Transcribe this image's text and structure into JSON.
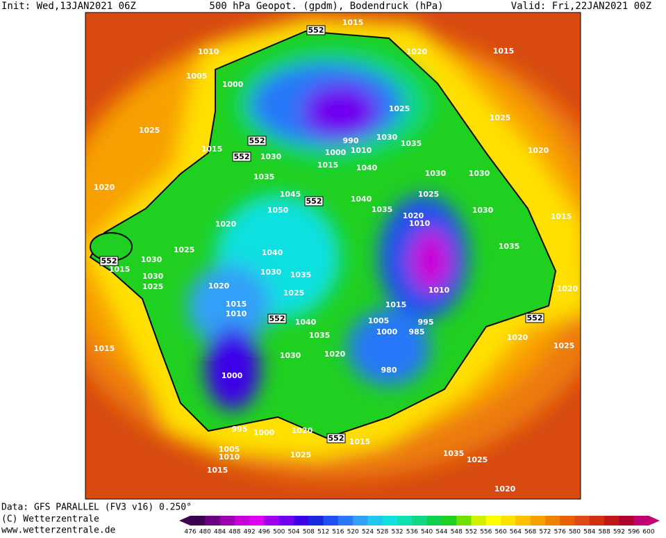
{
  "header": {
    "init": "Init: Wed,13JAN2021 06Z",
    "title": "500 hPa Geopot. (gpdm), Bodendruck (hPa)",
    "valid": "Valid: Fri,22JAN2021 00Z"
  },
  "footer": {
    "data": "Data: GFS PARALLEL (FV3 v16) 0.250°",
    "copyright": "(C) Wetterzentrale",
    "url": "www.wetterzentrale.de"
  },
  "colorbar": {
    "ticks": [
      476,
      480,
      484,
      488,
      492,
      496,
      500,
      504,
      508,
      512,
      516,
      520,
      524,
      528,
      532,
      536,
      540,
      544,
      548,
      552,
      556,
      560,
      564,
      568,
      572,
      576,
      580,
      584,
      588,
      592,
      596,
      600
    ],
    "colors": [
      "#3c0050",
      "#6a0080",
      "#9a00b0",
      "#c800d8",
      "#e000f0",
      "#a000f0",
      "#7000f0",
      "#3c00e8",
      "#1828e0",
      "#2050f0",
      "#2878f8",
      "#30a0f8",
      "#20c8f0",
      "#10e0e0",
      "#10e0b0",
      "#10d880",
      "#10d050",
      "#20d020",
      "#70e000",
      "#d0f000",
      "#ffff00",
      "#ffe000",
      "#ffc000",
      "#f8a000",
      "#f08000",
      "#e86000",
      "#e04818",
      "#d03010",
      "#c01818",
      "#b00030",
      "#c00070"
    ]
  },
  "map": {
    "labels": [
      "1015",
      "552",
      "1010",
      "1020",
      "1015",
      "1005",
      "1000",
      "1025",
      "1025",
      "1025",
      "990",
      "1030",
      "1035",
      "552",
      "552",
      "1015",
      "1030",
      "1000",
      "1010",
      "1020",
      "1015",
      "1040",
      "1035",
      "1030",
      "1030",
      "1020",
      "1045",
      "1025",
      "1040",
      "552",
      "1050",
      "1035",
      "1030",
      "1020",
      "1010",
      "1020",
      "1015",
      "1025",
      "1035",
      "1040",
      "552",
      "1015",
      "1030",
      "1030",
      "1035",
      "1030",
      "1025",
      "1020",
      "1025",
      "1010",
      "1020",
      "1015",
      "1015",
      "1010",
      "552",
      "552",
      "1040",
      "1005",
      "995",
      "1000",
      "985",
      "1035",
      "1020",
      "1015",
      "1025",
      "1030",
      "1020",
      "980",
      "1000",
      "995",
      "1000",
      "1020",
      "552",
      "1015",
      "1005",
      "1010",
      "1025",
      "1035",
      "1025",
      "1015",
      "1020"
    ]
  }
}
